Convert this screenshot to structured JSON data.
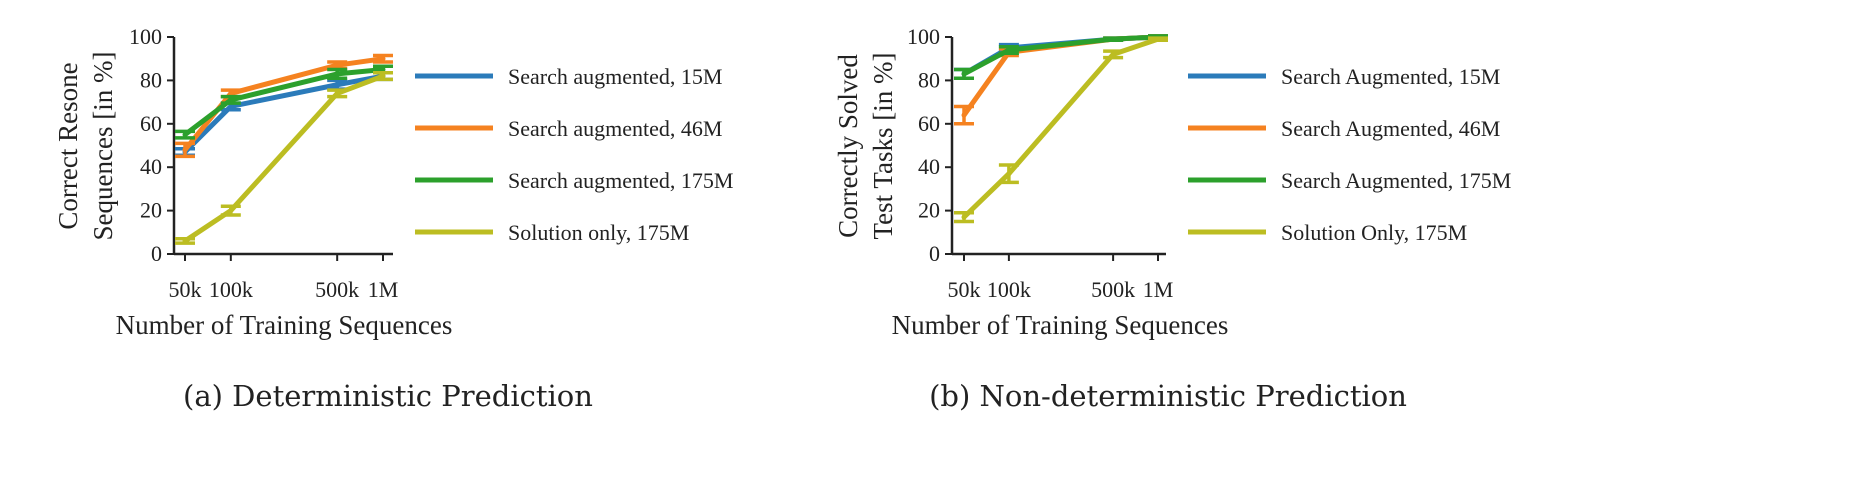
{
  "chart_data": [
    {
      "type": "line",
      "caption": "(a) Deterministic Prediction",
      "xlabel": "Number of Training Sequences",
      "ylabel": [
        "Correct Resone",
        "Sequences [in %]"
      ],
      "x": [
        50000,
        100000,
        500000,
        1000000
      ],
      "x_ticks": [
        "50k",
        "100k",
        "500k",
        "1M"
      ],
      "x_scale": "log",
      "ylim": [
        0,
        100
      ],
      "y_ticks": [
        0,
        20,
        40,
        60,
        80,
        100
      ],
      "legend_position": "right",
      "series": [
        {
          "name": "Search augmented, 15M",
          "color": "#2b7bba",
          "values": [
            47,
            68,
            78,
            82
          ],
          "error": [
            1.5,
            1.5,
            2,
            1.5
          ]
        },
        {
          "name": "Search augmented, 46M",
          "color": "#f58220",
          "values": [
            48,
            74,
            87,
            90
          ],
          "error": [
            3,
            1.5,
            1.5,
            1.5
          ]
        },
        {
          "name": "Search augmented, 175M",
          "color": "#2ca02c",
          "values": [
            55,
            71,
            83,
            85
          ],
          "error": [
            1.5,
            1.5,
            2,
            1.5
          ]
        },
        {
          "name": "Solution only, 175M",
          "color": "#bcbd22",
          "values": [
            6,
            20,
            74,
            82
          ],
          "error": [
            1,
            2,
            1.5,
            1.5
          ]
        }
      ]
    },
    {
      "type": "line",
      "caption": "(b) Non-deterministic Prediction",
      "xlabel": "Number of Training Sequences",
      "ylabel": [
        "Correctly Solved",
        "Test Tasks [in %]"
      ],
      "x": [
        50000,
        100000,
        500000,
        1000000
      ],
      "x_ticks": [
        "50k",
        "100k",
        "500k",
        "1M"
      ],
      "x_scale": "log",
      "ylim": [
        0,
        100
      ],
      "y_ticks": [
        0,
        20,
        40,
        60,
        80,
        100
      ],
      "legend_position": "right",
      "series": [
        {
          "name": "Search Augmented, 15M",
          "color": "#2b7bba",
          "values": [
            83,
            95,
            99,
            100
          ],
          "error": [
            2,
            1.5,
            0.5,
            0.5
          ]
        },
        {
          "name": "Search Augmented, 46M",
          "color": "#f58220",
          "values": [
            64,
            93,
            99,
            100
          ],
          "error": [
            4,
            1.5,
            0.5,
            0.5
          ]
        },
        {
          "name": "Search Augmented, 175M",
          "color": "#2ca02c",
          "values": [
            83,
            94,
            99,
            100
          ],
          "error": [
            2,
            1.5,
            0.5,
            0.5
          ]
        },
        {
          "name": "Solution Only, 175M",
          "color": "#bcbd22",
          "values": [
            17,
            37,
            92,
            99
          ],
          "error": [
            2,
            4,
            1.5,
            0.5
          ]
        }
      ]
    }
  ]
}
